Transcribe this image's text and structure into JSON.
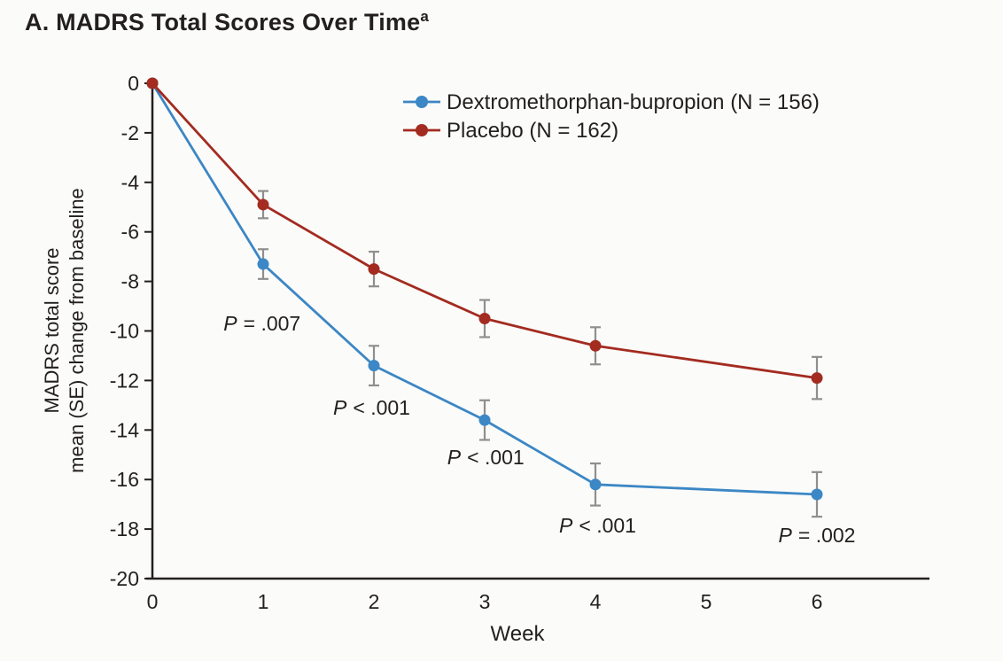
{
  "title": {
    "text": "A. MADRS Total Scores Over Time",
    "superscript": "a"
  },
  "chart_data": {
    "type": "line",
    "title": "A. MADRS Total Scores Over Time",
    "xlabel": "Week",
    "ylabel_line1": "MADRS total score",
    "ylabel_line2": "mean (SE) change from baseline",
    "x": [
      0,
      1,
      2,
      3,
      4,
      6
    ],
    "x_ticks": [
      0,
      1,
      2,
      3,
      4,
      5,
      6
    ],
    "y_ticks": [
      0,
      -2,
      -4,
      -6,
      -8,
      -10,
      -12,
      -14,
      -16,
      -18,
      -20
    ],
    "xlim": [
      0,
      7
    ],
    "ylim": [
      -20,
      0
    ],
    "grid": false,
    "legend_position": "top-center",
    "series": [
      {
        "name": "Dextromethorphan-bupropion (N = 156)",
        "color": "#3c87c5",
        "values": [
          0,
          -7.3,
          -11.4,
          -13.6,
          -16.2,
          -16.6
        ],
        "se": [
          0,
          0.6,
          0.8,
          0.8,
          0.85,
          0.9
        ]
      },
      {
        "name": "Placebo (N = 162)",
        "color": "#a32b20",
        "values": [
          0,
          -4.9,
          -7.5,
          -9.5,
          -10.6,
          -11.9
        ],
        "se": [
          0,
          0.55,
          0.7,
          0.75,
          0.75,
          0.85
        ]
      }
    ],
    "annotations": [
      {
        "text": "P = .007",
        "week": 0.99,
        "value": -9.98
      },
      {
        "text": "P < .001",
        "week": 1.98,
        "value": -13.38
      },
      {
        "text": "P < .001",
        "week": 3.01,
        "value": -15.38
      },
      {
        "text": "P < .001",
        "week": 4.02,
        "value": -18.14
      },
      {
        "text": "P = .002",
        "week": 6.0,
        "value": -18.53
      }
    ],
    "error_bar_color": "#8f8f8f",
    "axis_color": "#231f20"
  }
}
